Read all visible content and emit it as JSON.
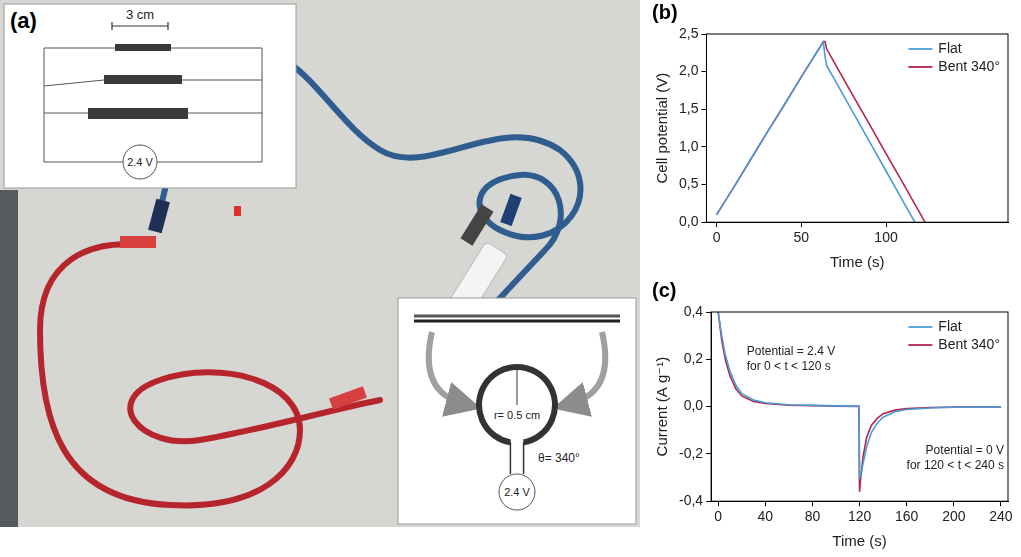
{
  "panel_a": {
    "letter": "(a)",
    "inset_top": {
      "scale_label": "3 cm",
      "source_label": "2.4 V"
    },
    "inset_bottom": {
      "radius_label": "r= 0.5 cm",
      "angle_label": "θ= 340°",
      "source_label": "2.4 V"
    }
  },
  "chart_data": [
    {
      "letter": "(b)",
      "type": "line",
      "x_label": "Time (s)",
      "y_label": "Cell potential (V)",
      "xlim": [
        -6,
        172
      ],
      "xticks": [
        0,
        50,
        100
      ],
      "ylim": [
        0,
        2.5
      ],
      "yticks": [
        {
          "value": 0,
          "label": "0,0"
        },
        {
          "value": 0.5,
          "label": "0,5"
        },
        {
          "value": 1,
          "label": "1,0"
        },
        {
          "value": 1.5,
          "label": "1,5"
        },
        {
          "value": 2,
          "label": "2,0"
        },
        {
          "value": 2.5,
          "label": "2,5"
        }
      ],
      "grid": false,
      "legend": "top-right",
      "series": [
        {
          "name": "Flat",
          "color": "#4a9cd6",
          "x": [
            0,
            10,
            20,
            30,
            40,
            50,
            60,
            63,
            64,
            65,
            70,
            80,
            90,
            100,
            110,
            117
          ],
          "values": [
            0.1,
            0.46,
            0.83,
            1.2,
            1.56,
            1.93,
            2.29,
            2.39,
            2.2,
            2.08,
            1.88,
            1.48,
            1.08,
            0.68,
            0.28,
            0
          ]
        },
        {
          "name": "Bent 340°",
          "color": "#b5244b",
          "x": [
            0,
            10,
            20,
            30,
            40,
            50,
            60,
            63,
            64,
            65,
            70,
            80,
            90,
            100,
            110,
            123
          ],
          "values": [
            0.1,
            0.46,
            0.83,
            1.2,
            1.56,
            1.93,
            2.29,
            2.4,
            2.4,
            2.3,
            2.1,
            1.7,
            1.31,
            0.91,
            0.52,
            0
          ]
        }
      ]
    },
    {
      "letter": "(c)",
      "type": "line",
      "x_label": "Time (s)",
      "y_label": "Current (A g⁻¹)",
      "xlim": [
        -6,
        246
      ],
      "xticks": [
        0,
        40,
        80,
        120,
        160,
        200,
        240
      ],
      "ylim": [
        -0.4,
        0.4
      ],
      "yticks": [
        {
          "value": -0.4,
          "label": "-0,4"
        },
        {
          "value": -0.2,
          "label": "-0,2"
        },
        {
          "value": 0,
          "label": "0,0"
        },
        {
          "value": 0.2,
          "label": "0,2"
        },
        {
          "value": 0.4,
          "label": "0,4"
        }
      ],
      "grid": false,
      "legend": "top-right",
      "annotations": [
        [
          "Potential = 2.4 V",
          "for 0 < t < 120 s"
        ],
        [
          "Potential = 0 V",
          "for 120 < t < 240 s"
        ]
      ],
      "series": [
        {
          "name": "Flat",
          "color": "#4a9cd6",
          "x": [
            0,
            3,
            6,
            10,
            15,
            20,
            30,
            40,
            60,
            80,
            100,
            119.5,
            120,
            121,
            123,
            126,
            130,
            135,
            140,
            150,
            160,
            180,
            200,
            240
          ],
          "values": [
            0.4,
            0.3,
            0.22,
            0.15,
            0.09,
            0.055,
            0.028,
            0.016,
            0.008,
            0.005,
            0.003,
            0.002,
            -0.3,
            -0.29,
            -0.24,
            -0.17,
            -0.11,
            -0.07,
            -0.045,
            -0.022,
            -0.012,
            -0.006,
            -0.003,
            -0.001
          ]
        },
        {
          "name": "Bent 340°",
          "color": "#b5244b",
          "x": [
            0,
            3,
            6,
            10,
            15,
            20,
            30,
            40,
            60,
            80,
            100,
            119.5,
            120,
            121,
            123,
            126,
            130,
            135,
            140,
            150,
            160,
            180,
            200,
            240
          ],
          "values": [
            0.4,
            0.28,
            0.2,
            0.13,
            0.075,
            0.045,
            0.022,
            0.013,
            0.006,
            0.004,
            0.002,
            0.001,
            -0.36,
            -0.3,
            -0.21,
            -0.13,
            -0.08,
            -0.05,
            -0.03,
            -0.015,
            -0.008,
            -0.004,
            -0.002,
            -0.001
          ]
        }
      ]
    }
  ]
}
